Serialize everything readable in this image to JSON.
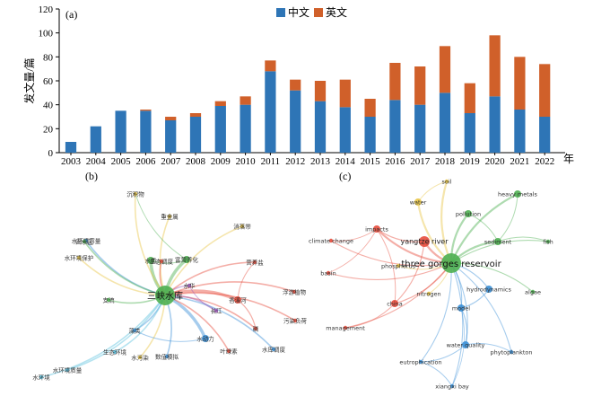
{
  "panel_labels": {
    "a": "(a)",
    "b": "(b)",
    "c": "(c)"
  },
  "colors": {
    "cn": "#2e75b6",
    "en": "#d0602a"
  },
  "chart_data": {
    "type": "bar",
    "stacked": true,
    "ylabel": "发文量/篇",
    "xunit": "年",
    "ylim": [
      0,
      120
    ],
    "yticks": [
      0,
      20,
      40,
      60,
      80,
      100,
      120
    ],
    "legend_position": "top-center",
    "categories": [
      "2003",
      "2004",
      "2005",
      "2006",
      "2007",
      "2008",
      "2009",
      "2010",
      "2011",
      "2012",
      "2013",
      "2014",
      "2015",
      "2016",
      "2017",
      "2018",
      "2019",
      "2020",
      "2021",
      "2022"
    ],
    "series": [
      {
        "name": "中文",
        "color": "#2e75b6",
        "values": [
          9,
          22,
          35,
          35,
          27,
          30,
          39,
          40,
          68,
          52,
          43,
          38,
          30,
          44,
          40,
          50,
          33,
          47,
          36,
          30
        ]
      },
      {
        "name": "英文",
        "color": "#d0602a",
        "values": [
          0,
          0,
          0,
          1,
          3,
          3,
          4,
          7,
          9,
          9,
          17,
          23,
          15,
          31,
          32,
          39,
          25,
          51,
          44,
          44
        ]
      }
    ]
  },
  "network_b": {
    "nodes": [
      {
        "label": "三峡水库",
        "color": "#4caf50",
        "size": "xl"
      },
      {
        "label": "富营养化",
        "color": "#4caf50",
        "size": "md"
      },
      {
        "label": "水质",
        "color": "#4caf50",
        "size": "md"
      },
      {
        "label": "香溪河",
        "color": "#e74c3c",
        "size": "md"
      },
      {
        "label": "水动力",
        "color": "#3a8fd6",
        "size": "md"
      },
      {
        "label": "藻类",
        "color": "#3a8fd6",
        "size": "sm"
      },
      {
        "label": "磷",
        "color": "#e74c3c",
        "size": "sm"
      },
      {
        "label": "长江",
        "color": "#9b59b6",
        "size": "sm"
      },
      {
        "label": "水华",
        "color": "#9b59b6",
        "size": "sm"
      },
      {
        "label": "营养盐",
        "color": "#e74c3c",
        "size": "sm"
      },
      {
        "label": "支流",
        "color": "#4caf50",
        "size": "sm"
      },
      {
        "label": "浮游植物",
        "color": "#e74c3c",
        "size": "sm"
      },
      {
        "label": "数值模拟",
        "color": "#3a8fd6",
        "size": "sm"
      },
      {
        "label": "沉积物",
        "color": "#e8c547",
        "size": "sm"
      },
      {
        "label": "重金属",
        "color": "#e8c547",
        "size": "sm"
      },
      {
        "label": "水环境",
        "color": "#5bc0de",
        "size": "sm"
      },
      {
        "label": "生态环境",
        "color": "#5bc0de",
        "size": "sm"
      },
      {
        "label": "消落带",
        "color": "#e8c547",
        "size": "sm"
      },
      {
        "label": "水库调度",
        "color": "#3a8fd6",
        "size": "sm"
      },
      {
        "label": "污染负荷",
        "color": "#e74c3c",
        "size": "sm"
      },
      {
        "label": "水环境容量",
        "color": "#3a8fd6",
        "size": "sm"
      },
      {
        "label": "水环境保护",
        "color": "#e8c547",
        "size": "sm"
      },
      {
        "label": "水环境质量",
        "color": "#5bc0de",
        "size": "sm"
      },
      {
        "label": "叶绿素",
        "color": "#e74c3c",
        "size": "sm"
      },
      {
        "label": "生态调度",
        "color": "#e74c3c",
        "size": "sm"
      },
      {
        "label": "水污染",
        "color": "#e8c547",
        "size": "sm"
      },
      {
        "label": "回水区",
        "color": "#4caf50",
        "size": "sm"
      }
    ]
  },
  "network_c": {
    "nodes": [
      {
        "label": "three gorges reservoir",
        "color": "#4caf50",
        "size": "xl"
      },
      {
        "label": "yangtze river",
        "color": "#e74c3c",
        "size": "lg"
      },
      {
        "label": "impacts",
        "color": "#e74c3c",
        "size": "md"
      },
      {
        "label": "water",
        "color": "#e8c547",
        "size": "md"
      },
      {
        "label": "soil",
        "color": "#e8c547",
        "size": "sm"
      },
      {
        "label": "heavy metals",
        "color": "#4caf50",
        "size": "md"
      },
      {
        "label": "pollution",
        "color": "#4caf50",
        "size": "md"
      },
      {
        "label": "sediment",
        "color": "#4caf50",
        "size": "md"
      },
      {
        "label": "fish",
        "color": "#4caf50",
        "size": "sm"
      },
      {
        "label": "climate change",
        "color": "#e74c3c",
        "size": "sm"
      },
      {
        "label": "phosphorus",
        "color": "#e8c547",
        "size": "sm"
      },
      {
        "label": "basin",
        "color": "#e74c3c",
        "size": "sm"
      },
      {
        "label": "nitrogen",
        "color": "#e8c547",
        "size": "sm"
      },
      {
        "label": "hydrodynamics",
        "color": "#3a8fd6",
        "size": "md"
      },
      {
        "label": "china",
        "color": "#e74c3c",
        "size": "md"
      },
      {
        "label": "model",
        "color": "#3a8fd6",
        "size": "md"
      },
      {
        "label": "algae",
        "color": "#4caf50",
        "size": "sm"
      },
      {
        "label": "management",
        "color": "#e74c3c",
        "size": "sm"
      },
      {
        "label": "water quality",
        "color": "#3a8fd6",
        "size": "md"
      },
      {
        "label": "phytoplankton",
        "color": "#3a8fd6",
        "size": "sm"
      },
      {
        "label": "eutrophication",
        "color": "#3a8fd6",
        "size": "sm"
      },
      {
        "label": "xiangxi bay",
        "color": "#3a8fd6",
        "size": "sm"
      }
    ]
  }
}
